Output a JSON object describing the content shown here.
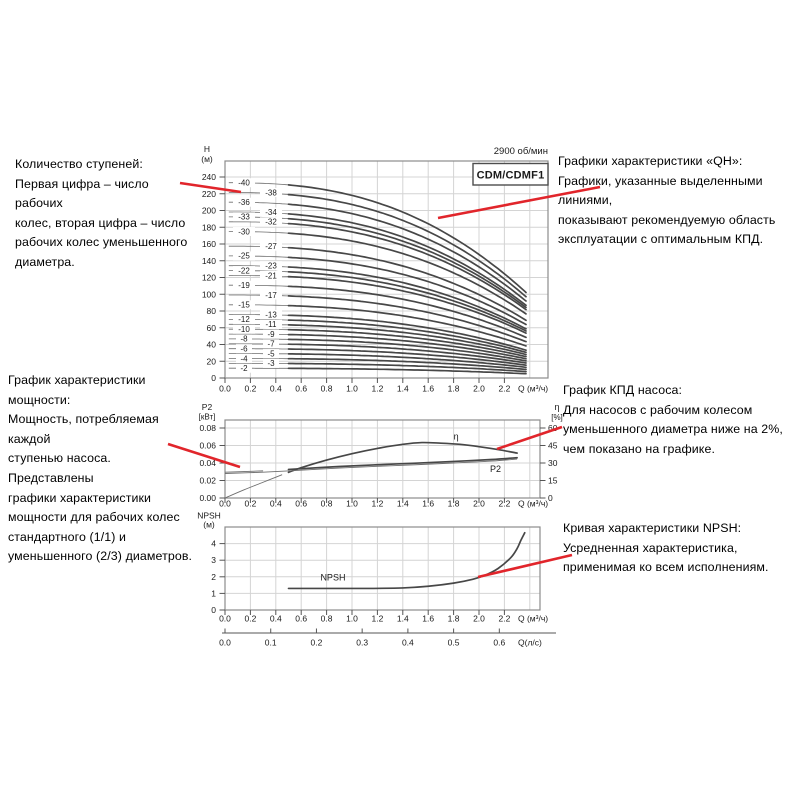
{
  "colors": {
    "accent_red": "#e1252b",
    "curve": "#474747",
    "curve_thin": "#6e6e6e",
    "grid": "#d4d4d4",
    "frame": "#8c8c8c",
    "text": "#1a1a1a"
  },
  "header": {
    "speed": "2900 об/мин",
    "model": "CDM/CDMF1"
  },
  "annotations": {
    "stages": {
      "lines": [
        "Количество ступеней:",
        "Первая цифра – число рабочих",
        "колес, вторая цифра – число",
        "рабочих колес уменьшенного",
        "диаметра."
      ]
    },
    "qh": {
      "lines": [
        "Графики характеристики «QH»:",
        "Графики, указанные выделенными линиями,",
        "показывают рекомендуемую область",
        "эксплуатации с оптимальным КПД."
      ]
    },
    "power": {
      "lines": [
        "График характеристики мощности:",
        "Мощность, потребляемая каждой",
        "ступенью насоса. Представлены",
        "графики характеристики",
        "мощности для рабочих колес",
        "стандартного (1/1) и",
        "уменьшенного (2/3) диаметров."
      ]
    },
    "efficiency": {
      "lines": [
        "График КПД насоса:",
        "Для насосов с рабочим колесом",
        "уменьшенного диаметра ниже на 2%,",
        "чем показано на графике."
      ]
    },
    "npsh": {
      "lines": [
        "Кривая характеристики NPSH:",
        "Усредненная характеристика,",
        "применимая ко всем исполнениям."
      ]
    }
  },
  "chart_data": [
    {
      "id": "qh",
      "type": "line",
      "title": "CDM/CDMF1",
      "subtitle": "2900 об/мин",
      "ylabel": [
        "H",
        "(м)"
      ],
      "xlabel": "Q (м³/ч)",
      "yticks": [
        0,
        20,
        40,
        60,
        80,
        100,
        120,
        140,
        160,
        180,
        200,
        220,
        240
      ],
      "xticks": [
        0,
        0.2,
        0.4,
        0.6,
        0.8,
        1.0,
        1.2,
        1.4,
        1.6,
        1.8,
        2.0,
        2.2
      ],
      "ylim": [
        0,
        259
      ],
      "xlim": [
        0,
        2.54
      ],
      "grid": true,
      "head_per_stage_m": 5.83,
      "stage_labels_col1": [
        40,
        36,
        33,
        30,
        25,
        22,
        19,
        15,
        12,
        10,
        8,
        6,
        4,
        2
      ],
      "stage_labels_col2": [
        38,
        34,
        32,
        27,
        23,
        21,
        17,
        13,
        11,
        9,
        7,
        5,
        3
      ],
      "curve_model": {
        "dropoff_coef": 0.065,
        "dropoff_exp": 2.5,
        "q_start": 0.03,
        "q_bold_from": 0.5,
        "q_end": 2.37
      }
    },
    {
      "id": "power",
      "type": "line",
      "left_axis": {
        "label": [
          "P2",
          "[кВт]"
        ],
        "ticks": [
          0,
          0.02,
          0.04,
          0.06,
          0.08
        ],
        "lim": [
          0,
          0.089
        ]
      },
      "right_axis": {
        "label": [
          "η",
          "[%]"
        ],
        "ticks": [
          0,
          15,
          30,
          45,
          60
        ],
        "lim": [
          0,
          66.9
        ]
      },
      "xlabel": "Q (м³/ч)",
      "xticks": [
        0,
        0.2,
        0.4,
        0.6,
        0.8,
        1.0,
        1.2,
        1.4,
        1.6,
        1.8,
        2.0,
        2.2
      ],
      "grid": true,
      "series": [
        {
          "name": "КПД η",
          "axis": "right",
          "label": "η",
          "label_at": [
            1.82,
            50
          ],
          "bold_from": 0.5,
          "points": [
            [
              0,
              0
            ],
            [
              0.15,
              7
            ],
            [
              0.3,
              13.5
            ],
            [
              0.45,
              20
            ],
            [
              0.6,
              26
            ],
            [
              0.8,
              32.5
            ],
            [
              1.0,
              38
            ],
            [
              1.2,
              42.5
            ],
            [
              1.4,
              46
            ],
            [
              1.55,
              47.5
            ],
            [
              1.7,
              47
            ],
            [
              1.85,
              46
            ],
            [
              2.0,
              44
            ],
            [
              2.15,
              41.5
            ],
            [
              2.3,
              38.5
            ]
          ]
        },
        {
          "name": "P2 (1/1)",
          "axis": "left",
          "label": "P2",
          "label_at": [
            2.13,
            0.0295
          ],
          "bold_from": 0.5,
          "points": [
            [
              0,
              0.0295
            ],
            [
              0.3,
              0.031
            ],
            [
              0.6,
              0.0335
            ],
            [
              0.9,
              0.036
            ],
            [
              1.2,
              0.038
            ],
            [
              1.5,
              0.0398
            ],
            [
              1.8,
              0.0418
            ],
            [
              2.1,
              0.044
            ],
            [
              2.3,
              0.046
            ]
          ]
        },
        {
          "name": "P2 (2/3)",
          "axis": "left",
          "thin": true,
          "points": [
            [
              0,
              0.028
            ],
            [
              0.3,
              0.0295
            ],
            [
              0.6,
              0.0318
            ],
            [
              0.9,
              0.0342
            ],
            [
              1.2,
              0.0362
            ],
            [
              1.5,
              0.038
            ],
            [
              1.8,
              0.04
            ],
            [
              2.1,
              0.0422
            ],
            [
              2.3,
              0.0445
            ]
          ]
        }
      ]
    },
    {
      "id": "npsh",
      "type": "line",
      "ylabel": [
        "NPSH",
        "(м)"
      ],
      "yticks": [
        0,
        1,
        2,
        3,
        4
      ],
      "ylim": [
        0,
        5
      ],
      "xlabel": "Q (м³/ч)",
      "xticks": [
        0,
        0.2,
        0.4,
        0.6,
        0.8,
        1.0,
        1.2,
        1.4,
        1.6,
        1.8,
        2.0,
        2.2
      ],
      "secondary_x": {
        "label": "Q(л/с)",
        "ticks": [
          0,
          0.1,
          0.2,
          0.3,
          0.4,
          0.5,
          0.6
        ],
        "to_primary_factor": 3.6
      },
      "grid": true,
      "series": [
        {
          "name": "NPSH",
          "label": "NPSH",
          "label_at": [
            0.85,
            1.78
          ],
          "bold_from": 0.5,
          "points": [
            [
              0.03,
              1.3
            ],
            [
              0.6,
              1.3
            ],
            [
              1.1,
              1.3
            ],
            [
              1.4,
              1.33
            ],
            [
              1.6,
              1.43
            ],
            [
              1.8,
              1.62
            ],
            [
              1.95,
              1.85
            ],
            [
              2.05,
              2.1
            ],
            [
              2.15,
              2.5
            ],
            [
              2.25,
              3.15
            ],
            [
              2.3,
              3.7
            ],
            [
              2.33,
              4.2
            ],
            [
              2.36,
              4.65
            ]
          ]
        }
      ]
    }
  ]
}
